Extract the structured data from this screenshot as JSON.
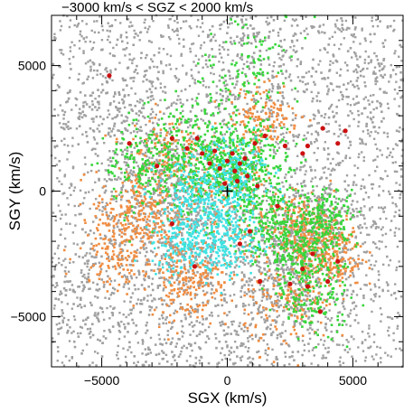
{
  "chart_data": {
    "type": "scatter",
    "title": "−3000 km/s < SGZ < 2000 km/s",
    "xlabel": "SGX (km/s)",
    "ylabel": "SGY (km/s)",
    "xlim": [
      -7000,
      7000
    ],
    "ylim": [
      -7000,
      7000
    ],
    "xticks": [
      -5000,
      0,
      5000
    ],
    "yticks": [
      -5000,
      0,
      5000
    ],
    "xtick_labels": [
      "−5000",
      "0",
      "5000"
    ],
    "ytick_labels": [
      "−5000",
      "0",
      "5000"
    ],
    "origin_marker": "+",
    "grid": false,
    "legend": "none",
    "series": [
      {
        "color": "#a0a0a0",
        "point_count_estimate": 6000,
        "distribution": "widely scattered across entire field, denser in filaments; concentration near (-2000,-1500), (3500,-1200), (3000,-4000)"
      },
      {
        "color": "#f08c40",
        "point_count_estimate": 2000,
        "distribution": "clumps around (-3500,-1000), (-1500,-3500), (3000,-1500), (4000,-2500), (1500,3000)"
      },
      {
        "color": "#36d63a",
        "point_count_estimate": 2500,
        "distribution": "concentrated in central band from (-2500,1500) to (1500,500) and along (0,0) to (4000,-3000)"
      },
      {
        "color": "#3fe3e3",
        "point_count_estimate": 1000,
        "distribution": "central region around (-1000,-500) to (0,-2000)"
      },
      {
        "color": "#cc1010",
        "points": [
          [
            -4700,
            4600
          ],
          [
            -3900,
            1900
          ],
          [
            -2800,
            1000
          ],
          [
            -2200,
            2100
          ],
          [
            -1600,
            1700
          ],
          [
            -1200,
            2100
          ],
          [
            -1000,
            1500
          ],
          [
            -700,
            1100
          ],
          [
            -500,
            1600
          ],
          [
            -300,
            900
          ],
          [
            0,
            1200
          ],
          [
            200,
            1500
          ],
          [
            300,
            800
          ],
          [
            500,
            1100
          ],
          [
            700,
            1300
          ],
          [
            800,
            600
          ],
          [
            1100,
            1900
          ],
          [
            1500,
            2200
          ],
          [
            1200,
            200
          ],
          [
            -100,
            300
          ],
          [
            400,
            400
          ],
          [
            900,
            -1600
          ],
          [
            500,
            -2100
          ],
          [
            2300,
            1800
          ],
          [
            3000,
            1500
          ],
          [
            3200,
            1800
          ],
          [
            3800,
            2500
          ],
          [
            4400,
            1900
          ],
          [
            4700,
            2400
          ],
          [
            -1300,
            -3000
          ],
          [
            1300,
            -3600
          ],
          [
            2500,
            -3700
          ],
          [
            3400,
            -2500
          ],
          [
            3000,
            -3100
          ],
          [
            3200,
            -3800
          ],
          [
            4400,
            -2800
          ],
          [
            3700,
            -4800
          ],
          [
            4000,
            -3600
          ],
          [
            2000,
            -600
          ],
          [
            -2200,
            -1300
          ]
        ]
      }
    ]
  }
}
